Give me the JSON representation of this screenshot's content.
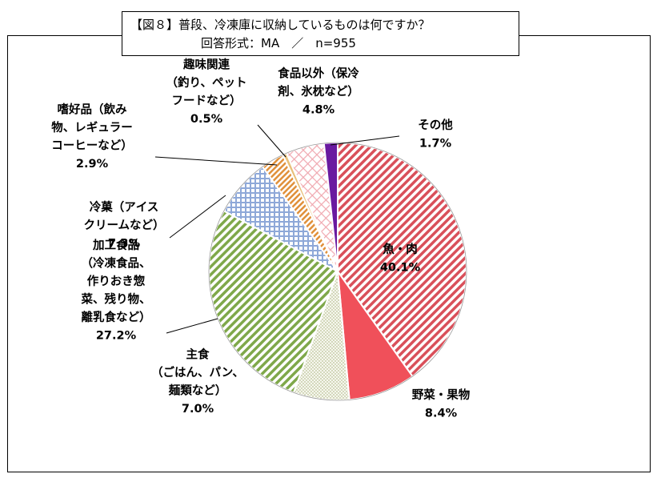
{
  "title": "【図８】普段、冷凍庫に収納しているものは何ですか？",
  "subtitle": "回答形式：MA　／　n=955",
  "chart_data": {
    "type": "pie",
    "start": "12 o'clock",
    "direction": "clockwise",
    "slices": [
      {
        "label_lines": [
          "魚・肉"
        ],
        "value_text": "40.1%",
        "value": 40.1,
        "color": "#d9505a",
        "pattern": "diagonal-stripes"
      },
      {
        "label_lines": [
          "野菜・果物"
        ],
        "value_text": "8.4%",
        "value": 8.4,
        "color": "#f0505a",
        "pattern": "solid"
      },
      {
        "label_lines": [
          "主食",
          "（ごはん、パン、",
          "麺類など）"
        ],
        "value_text": "7.0%",
        "value": 7.0,
        "color": "#e9ecd8",
        "pattern": "dots"
      },
      {
        "label_lines": [
          "加工食品",
          "（冷凍食品、",
          "作りおき惣",
          "菜、残り物、",
          "離乳食など）"
        ],
        "value_text": "27.2%",
        "value": 27.2,
        "color": "#7fa84a",
        "pattern": "diagonal-stripes"
      },
      {
        "label_lines": [
          "冷菓（アイス",
          "クリームなど）"
        ],
        "value_text": "7.3%",
        "value": 7.3,
        "color": "#8ea8d8",
        "pattern": "grid"
      },
      {
        "label_lines": [
          "嗜好品（飲み",
          "物、レギュラー",
          "コーヒーなど）"
        ],
        "value_text": "2.9%",
        "value": 2.9,
        "color": "#e0903a",
        "pattern": "diagonal-stripes"
      },
      {
        "label_lines": [
          "趣味関連",
          "（釣り、ペット",
          "フードなど）"
        ],
        "value_text": "0.5%",
        "value": 0.5,
        "color": "#e8c07a",
        "pattern": "solid"
      },
      {
        "label_lines": [
          "食品以外（保冷",
          "剤、氷枕など）"
        ],
        "value_text": "4.8%",
        "value": 4.8,
        "color": "#f0a8b0",
        "pattern": "diamond-grid"
      },
      {
        "label_lines": [
          "その他"
        ],
        "value_text": "1.7%",
        "value": 1.7,
        "color": "#6a1aa0",
        "pattern": "solid"
      }
    ]
  }
}
